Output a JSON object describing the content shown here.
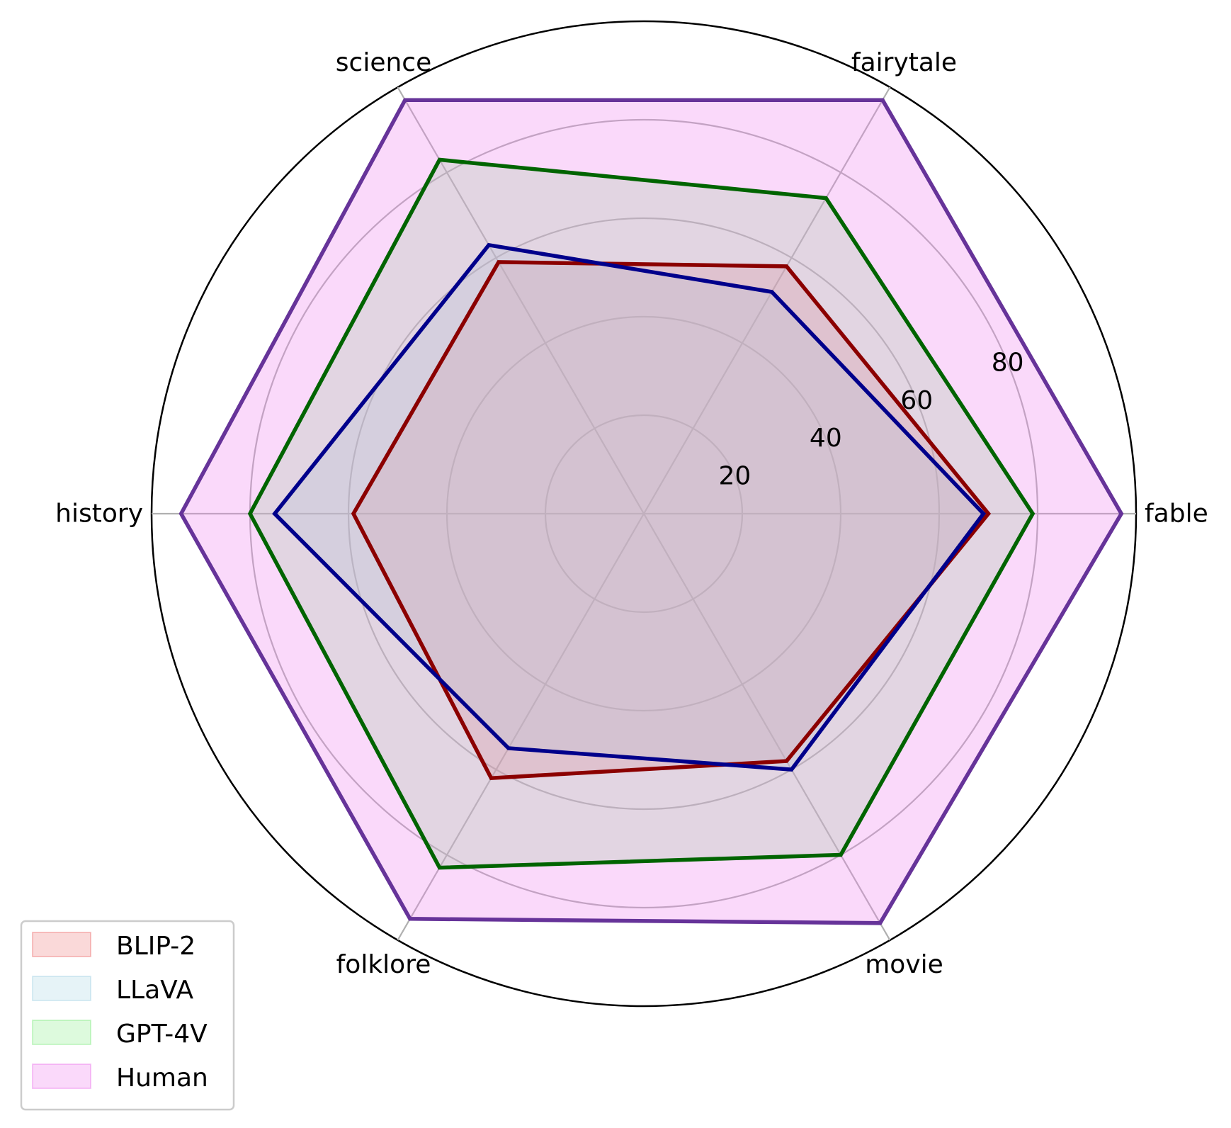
{
  "chart_data": {
    "type": "radar",
    "title": "",
    "categories": [
      "fable",
      "fairytale",
      "science",
      "history",
      "folklore",
      "movie"
    ],
    "r_ticks": [
      "20",
      "40",
      "60",
      "80"
    ],
    "r_grid_values": [
      20,
      40,
      60,
      80,
      100
    ],
    "rlim": [
      0,
      100
    ],
    "grid": true,
    "legend_position": "lower-left",
    "series": [
      {
        "name": "BLIP-2",
        "values": [
          70,
          58,
          59,
          59,
          62,
          58
        ],
        "line_color": "#8b0000",
        "fill_color": "#f08080"
      },
      {
        "name": "LLaVA",
        "values": [
          69,
          52,
          63,
          75,
          55,
          60
        ],
        "line_color": "#00008b",
        "fill_color": "#add8e6"
      },
      {
        "name": "GPT-4V",
        "values": [
          79,
          74,
          83,
          80,
          83,
          80
        ],
        "line_color": "#006400",
        "fill_color": "#90ee90"
      },
      {
        "name": "Human",
        "values": [
          97,
          97,
          97,
          94,
          95,
          96
        ],
        "line_color": "#663399",
        "fill_color": "#ee82ee"
      }
    ]
  }
}
